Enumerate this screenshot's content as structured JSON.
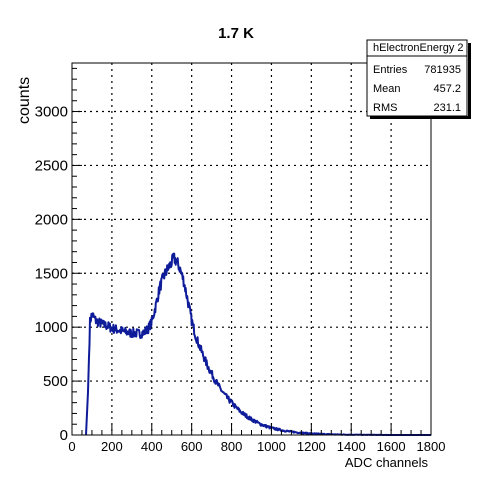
{
  "chart_data": {
    "type": "line",
    "title": "1.7 K",
    "xlabel": "ADC channels",
    "ylabel": "counts",
    "xlim": [
      0,
      1800
    ],
    "ylim": [
      0,
      3450
    ],
    "xticks": [
      "0",
      "200",
      "400",
      "600",
      "800",
      "1000",
      "1200",
      "1400",
      "1600",
      "1800"
    ],
    "yticks": [
      "0",
      "500",
      "1000",
      "1500",
      "2000",
      "2500",
      "3000"
    ],
    "grid": true,
    "color": "#0f1c9a",
    "stats_box": {
      "name": "hElectronEnergy 2",
      "rows": [
        {
          "label": "Entries",
          "value": "781935"
        },
        {
          "label": "Mean",
          "value": "457.2"
        },
        {
          "label": "RMS",
          "value": "231.1"
        }
      ]
    },
    "series": [
      {
        "x": [
          70,
          80,
          90,
          100,
          110,
          120,
          140,
          160,
          180,
          200,
          220,
          240,
          260,
          280,
          300,
          320,
          340,
          360,
          380,
          400,
          420,
          440,
          460,
          480,
          500,
          510,
          520,
          530,
          540,
          560,
          580,
          600,
          620,
          640,
          660,
          680,
          700,
          720,
          740,
          760,
          780,
          800,
          820,
          840,
          860,
          880,
          900,
          920,
          940,
          960,
          980,
          1000,
          1050,
          1100,
          1150,
          1200,
          1250,
          1300,
          1350,
          1400,
          1450,
          1500,
          1600,
          1700,
          1800
        ],
        "y": [
          0,
          400,
          1050,
          1120,
          1090,
          1060,
          1040,
          1020,
          1010,
          990,
          980,
          970,
          960,
          950,
          945,
          945,
          940,
          950,
          980,
          1050,
          1200,
          1370,
          1470,
          1540,
          1600,
          1640,
          1620,
          1590,
          1550,
          1430,
          1250,
          1060,
          920,
          820,
          730,
          640,
          570,
          500,
          440,
          385,
          340,
          300,
          260,
          225,
          195,
          170,
          145,
          125,
          105,
          90,
          77,
          65,
          45,
          30,
          20,
          14,
          9,
          6,
          4,
          3,
          2,
          1,
          0,
          0,
          0
        ]
      }
    ]
  }
}
